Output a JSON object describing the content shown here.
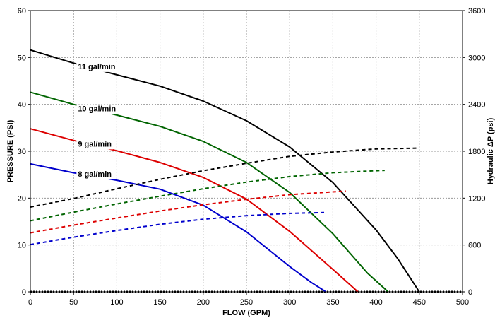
{
  "chart_data": {
    "type": "line",
    "title": "",
    "xlabel": "FLOW (GPM)",
    "ylabel": "PRESSURE (PSI)",
    "y2label": "Hydraulic ΔP (psi)",
    "xlim": [
      0,
      500
    ],
    "ylim": [
      0,
      60
    ],
    "y2lim": [
      0,
      3600
    ],
    "xticks": [
      0,
      50,
      100,
      150,
      200,
      250,
      300,
      350,
      400,
      450,
      500
    ],
    "yticks": [
      0,
      10,
      20,
      30,
      40,
      50,
      60
    ],
    "y2ticks": [
      0,
      600,
      1200,
      1800,
      2400,
      3000,
      3600
    ],
    "grid": true,
    "legend": "none",
    "series": [
      {
        "name": "11 gal/min",
        "axis": "left",
        "style": "solid",
        "color": "#000000",
        "x": [
          0,
          50,
          100,
          150,
          200,
          250,
          300,
          350,
          400,
          425,
          450
        ],
        "y": [
          51.6,
          48.8,
          46.3,
          43.9,
          40.7,
          36.5,
          30.9,
          23.3,
          13.2,
          7.1,
          0
        ]
      },
      {
        "name": "10 gal/min",
        "axis": "left",
        "style": "solid",
        "color": "#006400",
        "x": [
          0,
          50,
          100,
          150,
          200,
          250,
          300,
          350,
          390,
          414
        ],
        "y": [
          42.6,
          40.0,
          37.7,
          35.3,
          32.1,
          27.6,
          21.2,
          12.4,
          4.0,
          0
        ]
      },
      {
        "name": "9 gal/min",
        "axis": "left",
        "style": "solid",
        "color": "#dd0000",
        "x": [
          0,
          50,
          100,
          150,
          200,
          250,
          300,
          350,
          379
        ],
        "y": [
          34.8,
          32.3,
          30.1,
          27.6,
          24.4,
          19.8,
          12.9,
          4.8,
          0
        ]
      },
      {
        "name": "8 gal/min",
        "axis": "left",
        "style": "solid",
        "color": "#0000cc",
        "x": [
          0,
          50,
          100,
          150,
          200,
          250,
          300,
          325,
          342
        ],
        "y": [
          27.3,
          25.4,
          23.8,
          21.9,
          18.5,
          12.8,
          5.4,
          2.0,
          0
        ]
      },
      {
        "name": "",
        "axis": "right",
        "style": "dashed",
        "color": "#000000",
        "x": [
          0,
          50,
          100,
          150,
          200,
          250,
          300,
          350,
          400,
          450
        ],
        "y": [
          1085,
          1195,
          1320,
          1440,
          1550,
          1645,
          1735,
          1790,
          1830,
          1840
        ]
      },
      {
        "name": "",
        "axis": "right",
        "style": "dashed",
        "color": "#006400",
        "x": [
          0,
          50,
          100,
          150,
          200,
          250,
          300,
          350,
          400,
          410
        ],
        "y": [
          910,
          1020,
          1125,
          1225,
          1320,
          1405,
          1475,
          1525,
          1550,
          1555
        ]
      },
      {
        "name": "",
        "axis": "right",
        "style": "dashed",
        "color": "#dd0000",
        "x": [
          0,
          50,
          100,
          150,
          200,
          250,
          300,
          350,
          365
        ],
        "y": [
          755,
          855,
          945,
          1035,
          1115,
          1185,
          1245,
          1280,
          1290
        ]
      },
      {
        "name": "",
        "axis": "right",
        "style": "dashed",
        "color": "#0000cc",
        "x": [
          0,
          50,
          100,
          150,
          200,
          250,
          300,
          340
        ],
        "y": [
          605,
          700,
          785,
          865,
          930,
          975,
          1005,
          1015
        ]
      }
    ],
    "annotations": [
      {
        "text": "11 gal/min",
        "x": 55,
        "y": 47.5
      },
      {
        "text": "10 gal/min",
        "x": 55,
        "y": 38.5
      },
      {
        "text": "9 gal/min",
        "x": 55,
        "y": 31.0
      },
      {
        "text": "8 gal/min",
        "x": 55,
        "y": 24.6
      }
    ]
  }
}
